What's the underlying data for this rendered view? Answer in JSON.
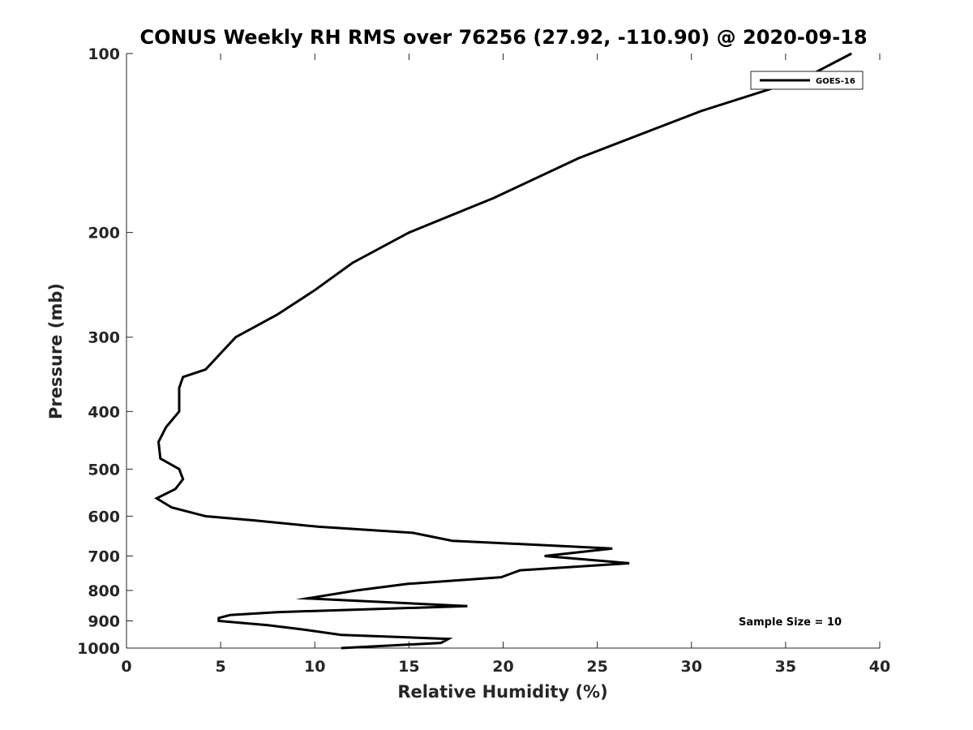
{
  "chart_data": {
    "type": "line",
    "title": "CONUS Weekly RH RMS over 76256 (27.92, -110.90) @ 2020-09-18",
    "xlabel": "Relative Humidity (%)",
    "ylabel": "Pressure (mb)",
    "xlim": [
      0,
      40
    ],
    "ylim": [
      100,
      1000
    ],
    "y_scale": "log",
    "y_reversed": true,
    "x_ticks": [
      0,
      5,
      10,
      15,
      20,
      25,
      30,
      35,
      40
    ],
    "y_ticks": [
      100,
      200,
      300,
      400,
      500,
      600,
      700,
      800,
      900,
      1000
    ],
    "grid": false,
    "legend_position": "top-right",
    "annotation": "Sample Size = 10",
    "series": [
      {
        "name": "GOES-16",
        "color": "#000000",
        "points": [
          [
            38.5,
            100
          ],
          [
            36,
            110
          ],
          [
            30.5,
            125
          ],
          [
            24,
            150
          ],
          [
            19.5,
            175
          ],
          [
            15,
            200
          ],
          [
            12,
            225
          ],
          [
            10,
            250
          ],
          [
            8,
            275
          ],
          [
            5.8,
            300
          ],
          [
            4.2,
            340
          ],
          [
            3.0,
            350
          ],
          [
            2.8,
            365
          ],
          [
            2.8,
            400
          ],
          [
            2.1,
            425
          ],
          [
            1.7,
            450
          ],
          [
            1.8,
            480
          ],
          [
            2.8,
            500
          ],
          [
            3.0,
            520
          ],
          [
            2.6,
            540
          ],
          [
            1.6,
            560
          ],
          [
            2.4,
            580
          ],
          [
            4.2,
            600
          ],
          [
            6.8,
            610
          ],
          [
            10.2,
            625
          ],
          [
            15.2,
            640
          ],
          [
            17.3,
            660
          ],
          [
            25.8,
            680
          ],
          [
            22.2,
            700
          ],
          [
            26.7,
            720
          ],
          [
            20.9,
            740
          ],
          [
            19.9,
            760
          ],
          [
            14.9,
            780
          ],
          [
            12.2,
            800
          ],
          [
            9.6,
            825
          ],
          [
            18.1,
            850
          ],
          [
            8.0,
            870
          ],
          [
            5.5,
            880
          ],
          [
            4.9,
            890
          ],
          [
            4.9,
            900
          ],
          [
            7.5,
            915
          ],
          [
            9.3,
            930
          ],
          [
            11.4,
            950
          ],
          [
            17.1,
            965
          ],
          [
            16.7,
            980
          ],
          [
            11.4,
            1000
          ]
        ]
      }
    ]
  }
}
